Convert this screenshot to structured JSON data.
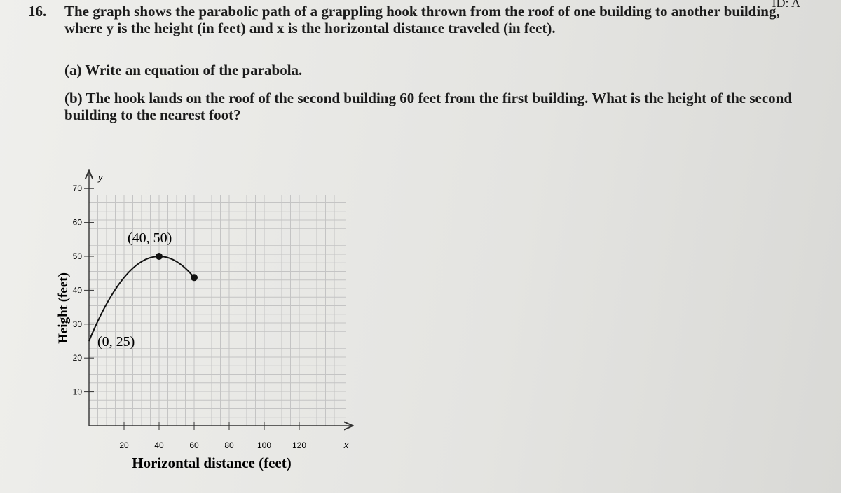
{
  "header": {
    "id": "ID: A"
  },
  "question": {
    "number": "16.",
    "text": "The graph shows the parabolic path of a grappling hook thrown from the roof of one building to another building, where y is the height (in feet) and x is the horizontal distance traveled (in feet).",
    "parts": [
      "(a) Write an equation of the parabola.",
      "(b) The hook lands on the roof of the second building 60 feet from the first building. What is the height of the second building to the nearest foot?"
    ]
  },
  "chart_data": {
    "type": "line",
    "x_label": "Horizontal distance (feet)",
    "y_label": "Height (feet)",
    "x_axis_name": "x",
    "y_axis_name": "y",
    "x": [
      0,
      40,
      60
    ],
    "values": [
      25,
      50,
      43.75
    ],
    "color": "#111111",
    "annotations": [
      "(0, 25)",
      "(40, 50)"
    ],
    "xlim": [
      0,
      150
    ],
    "ylim": [
      0,
      75
    ],
    "xticks": [
      20,
      40,
      60,
      80,
      100,
      120
    ],
    "yticks": [
      10,
      20,
      30,
      40,
      50,
      60,
      70
    ],
    "grid": true
  }
}
